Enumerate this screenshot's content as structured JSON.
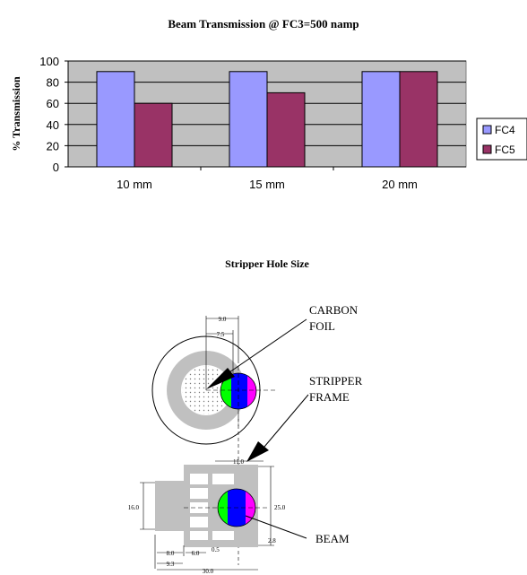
{
  "chart_data": {
    "type": "bar",
    "title": "Beam Transmission @ FC3=500 namp",
    "xlabel": "Stripper Hole Size",
    "ylabel": "% Transmission",
    "categories": [
      "10 mm",
      "15 mm",
      "20 mm"
    ],
    "ylim": [
      0,
      100
    ],
    "yticks": [
      0,
      20,
      40,
      60,
      80,
      100
    ],
    "grid": true,
    "legend_position": "right",
    "series": [
      {
        "name": "FC4",
        "values": [
          90,
          90,
          90
        ],
        "color": "#9999ff"
      },
      {
        "name": "FC5",
        "values": [
          60,
          70,
          90
        ],
        "color": "#993366"
      }
    ],
    "plot_background": "#c0c0c0"
  },
  "diagram": {
    "labels": {
      "carbon_foil_1": "CARBON",
      "carbon_foil_2": "FOIL",
      "stripper_frame_1": "STRIPPER",
      "stripper_frame_2": "FRAME",
      "beam": "BEAM"
    },
    "dimensions": {
      "d_9_0": "9.0",
      "d_7_5": "7.5",
      "d_11_0": "11.0",
      "d_16_0": "16.0",
      "d_25_0": "25.0",
      "d_2_8": "2.8",
      "d_8_0": "8.0",
      "d_6_0": "6.0",
      "d_0_5": "0.5",
      "d_9_3": "9.3",
      "d_30_0": "30.0"
    },
    "colors": {
      "frame_gray": "#c0c0c0",
      "beam_green": "#00ff00",
      "beam_blue": "#0000ff",
      "beam_magenta": "#ff00ff"
    }
  }
}
